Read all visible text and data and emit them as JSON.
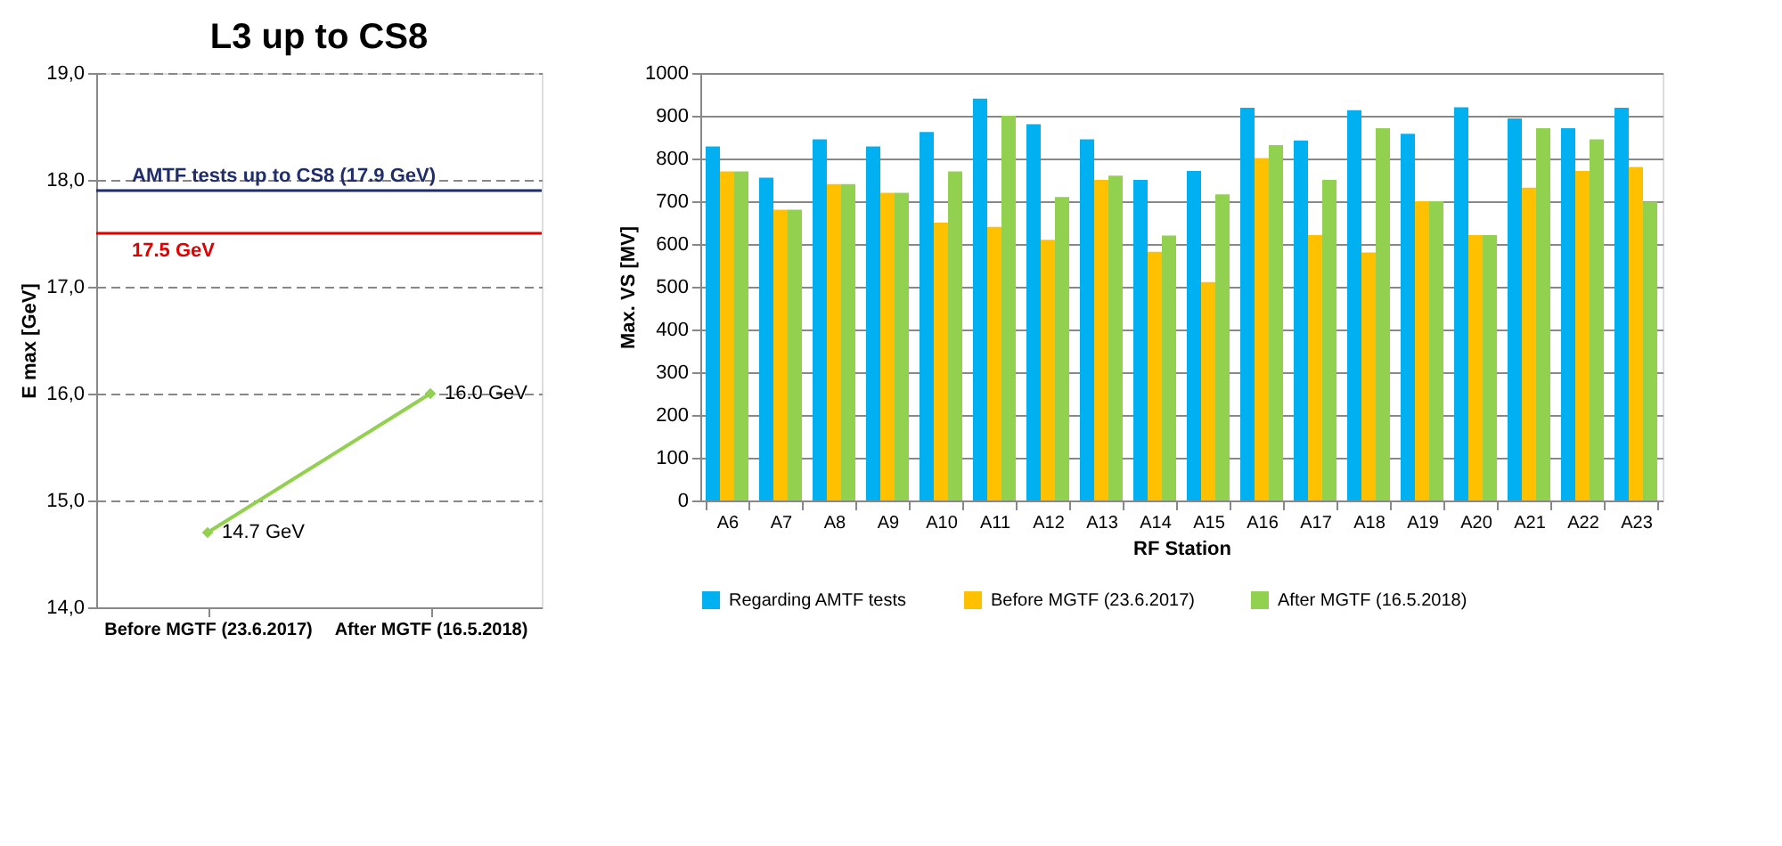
{
  "chart_data": [
    {
      "type": "line",
      "title": "L3 up to CS8",
      "ylabel": "E max [GeV]",
      "categories": [
        "Before MGTF (23.6.2017)",
        "After MGTF (16.5.2018)"
      ],
      "series": [
        {
          "color": "#92d050",
          "values": [
            14.7,
            16.0
          ],
          "value_labels": [
            "14.7 GeV",
            "16.0 GeV"
          ]
        }
      ],
      "ylim": [
        14,
        19
      ],
      "yticks": [
        {
          "value": 14,
          "label": "14,0"
        },
        {
          "value": 15,
          "label": "15,0"
        },
        {
          "value": 16,
          "label": "16,0"
        },
        {
          "value": 17,
          "label": "17,0"
        },
        {
          "value": 18,
          "label": "18,0"
        },
        {
          "value": 19,
          "label": "19,0"
        }
      ],
      "ref_lines": [
        {
          "axis": "y",
          "value": 17.9,
          "label": "AMTF tests up to CS8 (17.9 GeV)",
          "color": "#1f2d6b"
        },
        {
          "axis": "y",
          "value": 17.5,
          "label": "17.5 GeV",
          "color": "#e00000"
        }
      ],
      "grid": "y",
      "marker": "diamond",
      "line_style": "solid"
    },
    {
      "type": "bar",
      "xlabel": "RF Station",
      "ylabel": "Max. VS [MV]",
      "categories": [
        "A6",
        "A7",
        "A8",
        "A9",
        "A10",
        "A11",
        "A12",
        "A13",
        "A14",
        "A15",
        "A16",
        "A17",
        "A18",
        "A19",
        "A20",
        "A21",
        "A22",
        "A23"
      ],
      "series": [
        {
          "name": "Regarding AMTF tests",
          "color": "#00b0f0",
          "values": [
            828,
            755,
            845,
            828,
            862,
            940,
            880,
            845,
            750,
            771,
            919,
            842,
            913,
            858,
            920,
            894,
            871,
            919
          ]
        },
        {
          "name": "Before MGTF (23.6.2017)",
          "color": "#ffc000",
          "values": [
            770,
            680,
            740,
            720,
            650,
            640,
            610,
            750,
            582,
            511,
            801,
            621,
            580,
            700,
            621,
            732,
            771,
            780
          ]
        },
        {
          "name": "After MGTF (16.5.2018)",
          "color": "#92d050",
          "values": [
            770,
            680,
            740,
            720,
            770,
            900,
            710,
            760,
            620,
            716,
            831,
            750,
            871,
            700,
            621,
            871,
            845,
            699
          ]
        }
      ],
      "ylim": [
        0,
        1000
      ],
      "yticks": [
        0,
        100,
        200,
        300,
        400,
        500,
        600,
        700,
        800,
        900,
        {
          "value": 1000,
          "label": "1000"
        }
      ],
      "grid": "y",
      "legend": "bottom"
    }
  ]
}
